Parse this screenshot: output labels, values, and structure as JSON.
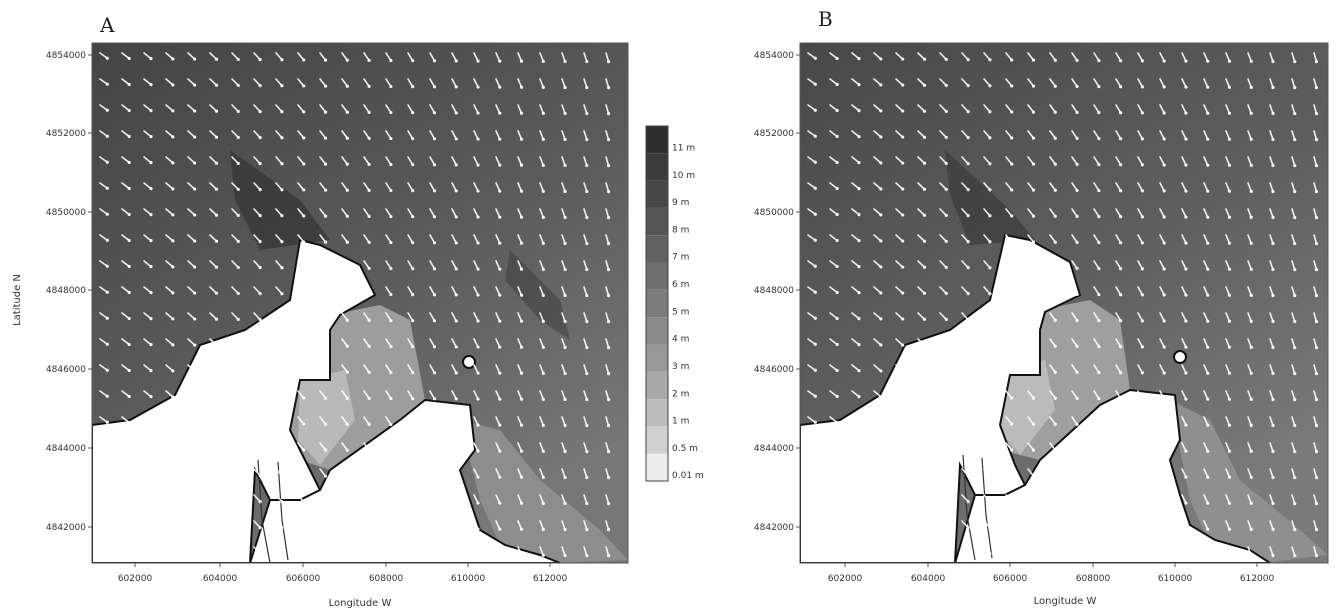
{
  "panels": [
    {
      "letter": "A",
      "xlabel": "Longitude W",
      "ylabel": "Latitude N",
      "xticks": [
        "602000",
        "604000",
        "606000",
        "608000",
        "610000",
        "612000"
      ],
      "yticks": [
        "4854000",
        "4852000",
        "4850000",
        "4848000",
        "4846000",
        "4844000",
        "4842000"
      ]
    },
    {
      "letter": "B",
      "xlabel": "Longitude W",
      "ylabel": "",
      "xticks": [
        "602000",
        "604000",
        "606000",
        "608000",
        "610000",
        "612000"
      ],
      "yticks": [
        "4854000",
        "4852000",
        "4850000",
        "4848000",
        "4846000",
        "4844000",
        "4842000"
      ]
    }
  ],
  "legend": {
    "levels": [
      {
        "label": "11 m",
        "color": "#2e2e2e"
      },
      {
        "label": "10 m",
        "color": "#3b3b3b"
      },
      {
        "label": "9 m",
        "color": "#474747"
      },
      {
        "label": "8 m",
        "color": "#555555"
      },
      {
        "label": "7 m",
        "color": "#626262"
      },
      {
        "label": "6 m",
        "color": "#6f6f6f"
      },
      {
        "label": "5 m",
        "color": "#7c7c7c"
      },
      {
        "label": "4 m",
        "color": "#8a8a8a"
      },
      {
        "label": "3 m",
        "color": "#999999"
      },
      {
        "label": "2 m",
        "color": "#a9a9a9"
      },
      {
        "label": "1 m",
        "color": "#bcbcbc"
      },
      {
        "label": "0.5 m",
        "color": "#d0d0d0"
      },
      {
        "label": "0.01 m",
        "color": "#ececec"
      }
    ]
  },
  "colors": {
    "deep_water": "#4a4a4a",
    "shallow_water": "#9e9e9e",
    "land": "#ffffff",
    "arrow": "#ffffff",
    "coastline": "#111111"
  }
}
